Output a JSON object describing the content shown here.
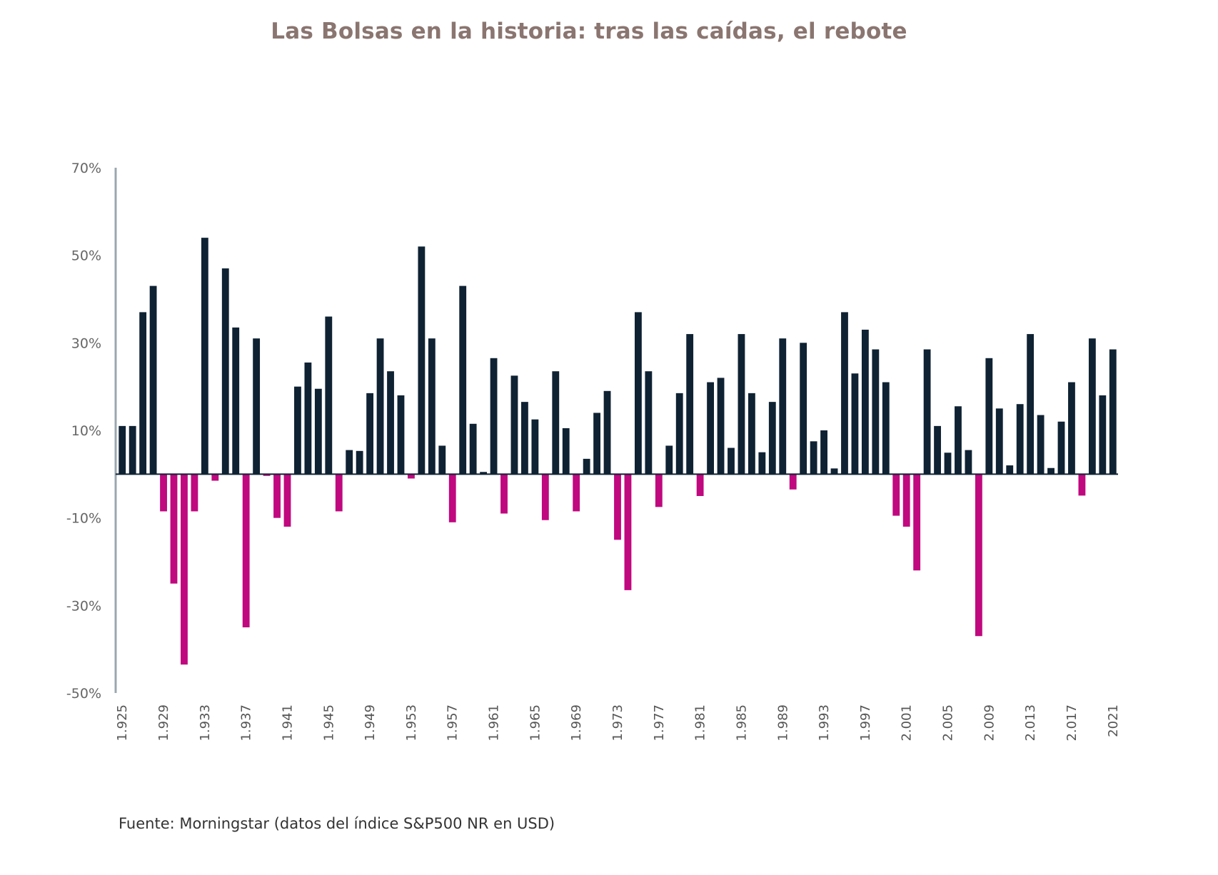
{
  "chart_data": {
    "type": "bar",
    "title": "Las Bolsas en la historia: tras las caídas, el rebote",
    "source": "Fuente: Morningstar (datos del índice S&P500 NR en USD)",
    "xlabel": "",
    "ylabel": "",
    "ylim": [
      -50,
      70
    ],
    "yticks": [
      70,
      50,
      30,
      10,
      -10,
      -30,
      -50
    ],
    "ytick_labels": [
      "70%",
      "50%",
      "30%",
      "10%",
      "-10%",
      "-30%",
      "-50%"
    ],
    "xtick_labels": [
      "1.925",
      "1.929",
      "1.933",
      "1.937",
      "1.941",
      "1.945",
      "1.949",
      "1.953",
      "1.957",
      "1.961",
      "1.965",
      "1.969",
      "1.973",
      "1.977",
      "1.981",
      "1.985",
      "1.989",
      "1.993",
      "1.997",
      "2.001",
      "2.005",
      "2.009",
      "2.013",
      "2.017",
      "2021"
    ],
    "xtick_years": [
      1925,
      1929,
      1933,
      1937,
      1941,
      1945,
      1949,
      1953,
      1957,
      1961,
      1965,
      1969,
      1973,
      1977,
      1981,
      1985,
      1989,
      1993,
      1997,
      2001,
      2005,
      2009,
      2013,
      2017,
      2021
    ],
    "grid": false,
    "colors": {
      "positive": "#0f2233",
      "negative": "#c0087f",
      "axis": "#9aa8b0"
    },
    "start_year": 1925,
    "values": [
      11,
      11,
      37,
      43,
      -8.5,
      -25,
      -43.5,
      -8.5,
      54,
      -1.5,
      47,
      33.5,
      -35,
      31,
      -0.4,
      -10,
      -12,
      20,
      25.5,
      19.5,
      36,
      -8.5,
      5.5,
      5.3,
      18.5,
      31,
      23.5,
      18,
      -1,
      52,
      31,
      6.5,
      -11,
      43,
      11.5,
      0.5,
      26.5,
      -9,
      22.5,
      16.5,
      12.5,
      -10.5,
      23.5,
      10.5,
      -8.5,
      3.5,
      14,
      19,
      -15,
      -26.5,
      37,
      23.5,
      -7.5,
      6.5,
      18.5,
      32,
      -5,
      21,
      22,
      6,
      32,
      18.5,
      5,
      16.5,
      31,
      -3.5,
      30,
      7.5,
      10,
      1.3,
      37,
      23,
      33,
      28.5,
      21,
      -9.5,
      -12,
      -22,
      28.5,
      11,
      4.9,
      15.5,
      5.5,
      -37,
      26.5,
      15,
      2,
      16,
      32,
      13.5,
      1.4,
      12,
      21,
      -4.9,
      31,
      18,
      28.5
    ]
  }
}
